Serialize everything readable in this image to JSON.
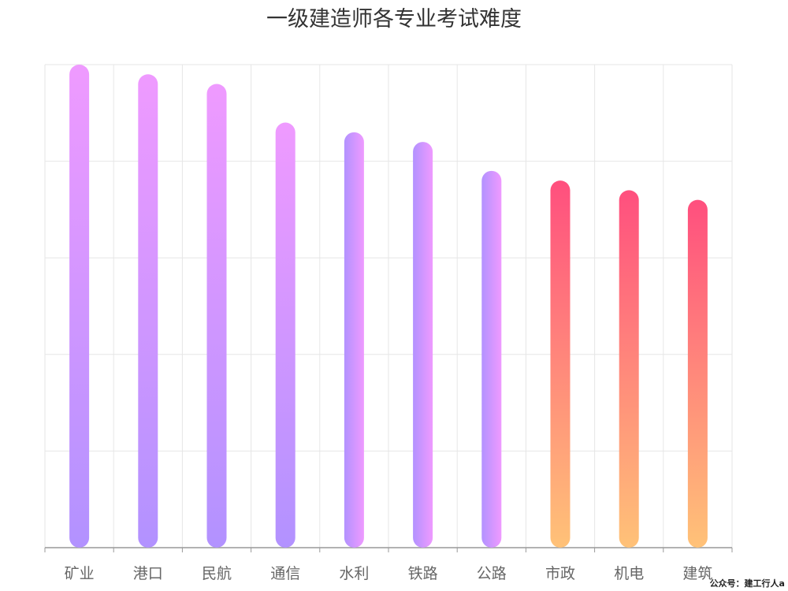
{
  "chart_data": {
    "type": "bar",
    "title": "一级建造师各专业考试难度",
    "categories": [
      "矿业",
      "港口",
      "民航",
      "通信",
      "水利",
      "铁路",
      "公路",
      "市政",
      "机电",
      "建筑"
    ],
    "values": [
      100,
      98,
      96,
      88,
      86,
      84,
      78,
      76,
      74,
      72
    ],
    "ylim": [
      0,
      100
    ],
    "grid": true,
    "gradients": {
      "vertical_purple": [
        "#b292ff",
        "#ef9aff"
      ],
      "horizontal_purple": [
        "#b292ff",
        "#ef9aff"
      ],
      "orange_pink": [
        "#ffc278",
        "#ff4f7e"
      ]
    },
    "bar_styles": [
      "vertical_purple",
      "vertical_purple",
      "vertical_purple",
      "vertical_purple",
      "horizontal_purple",
      "horizontal_purple",
      "horizontal_purple",
      "orange_pink",
      "orange_pink",
      "orange_pink"
    ]
  },
  "watermark": "公众号：建工行人a"
}
